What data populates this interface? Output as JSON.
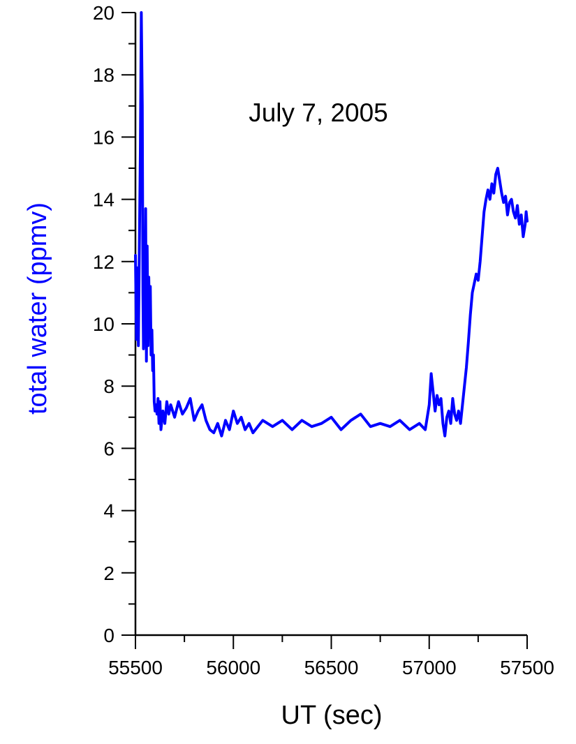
{
  "chart_data": {
    "type": "line",
    "annotation": "July 7, 2005",
    "xlabel": "UT (sec)",
    "ylabel": "total water (ppmv)",
    "xlim": [
      55500,
      57500
    ],
    "ylim": [
      0,
      20
    ],
    "x_ticks": [
      55500,
      56000,
      56500,
      57000,
      57500
    ],
    "y_ticks": [
      0,
      2,
      4,
      6,
      8,
      10,
      12,
      14,
      16,
      18,
      20
    ],
    "grid": false,
    "legend": "none",
    "colors": {
      "series": "#0000ff",
      "ylabel": "#0000ff",
      "axis": "#000000"
    },
    "series": [
      {
        "x": [
          55500,
          55505,
          55510,
          55515,
          55520,
          55525,
          55530,
          55535,
          55538,
          55541,
          55545,
          55548,
          55552,
          55556,
          55560,
          55564,
          55568,
          55572,
          55576,
          55580,
          55584,
          55588,
          55592,
          55596,
          55600,
          55605,
          55610,
          55615,
          55620,
          55625,
          55630,
          55640,
          55650,
          55660,
          55670,
          55680,
          55700,
          55720,
          55740,
          55760,
          55780,
          55800,
          55820,
          55840,
          55860,
          55880,
          55900,
          55920,
          55940,
          55960,
          55980,
          56000,
          56020,
          56040,
          56060,
          56080,
          56100,
          56150,
          56200,
          56250,
          56300,
          56350,
          56400,
          56450,
          56500,
          56550,
          56600,
          56650,
          56700,
          56750,
          56800,
          56850,
          56900,
          56950,
          56980,
          57000,
          57010,
          57020,
          57030,
          57040,
          57050,
          57060,
          57070,
          57080,
          57090,
          57100,
          57110,
          57120,
          57130,
          57140,
          57150,
          57160,
          57170,
          57180,
          57190,
          57200,
          57210,
          57220,
          57230,
          57240,
          57250,
          57260,
          57270,
          57280,
          57290,
          57300,
          57310,
          57320,
          57330,
          57340,
          57350,
          57360,
          57370,
          57380,
          57390,
          57400,
          57410,
          57420,
          57430,
          57440,
          57450,
          57460,
          57470,
          57480,
          57490,
          57495,
          57500
        ],
        "y": [
          12.2,
          9.5,
          11.8,
          9.3,
          12.5,
          15.5,
          20.0,
          17.0,
          11.0,
          9.2,
          12.5,
          9.5,
          13.7,
          8.8,
          12.5,
          9.3,
          11.5,
          10.0,
          11.2,
          9.0,
          9.8,
          8.5,
          9.0,
          7.5,
          7.2,
          7.4,
          7.1,
          7.6,
          6.8,
          7.5,
          6.6,
          7.2,
          6.8,
          7.5,
          7.1,
          7.4,
          7.0,
          7.5,
          7.1,
          7.3,
          7.6,
          6.9,
          7.2,
          7.4,
          6.9,
          6.6,
          6.5,
          6.8,
          6.4,
          6.9,
          6.6,
          7.2,
          6.8,
          7.0,
          6.6,
          6.8,
          6.5,
          6.9,
          6.7,
          6.9,
          6.6,
          6.9,
          6.7,
          6.8,
          7.0,
          6.6,
          6.9,
          7.1,
          6.7,
          6.8,
          6.7,
          6.9,
          6.6,
          6.8,
          6.6,
          7.4,
          8.4,
          7.8,
          7.2,
          7.7,
          7.4,
          7.6,
          6.8,
          6.4,
          7.0,
          7.2,
          6.8,
          7.6,
          7.1,
          6.9,
          7.2,
          6.8,
          7.4,
          8.0,
          8.6,
          9.4,
          10.3,
          11.0,
          11.3,
          11.6,
          11.4,
          12.0,
          12.8,
          13.6,
          14.0,
          14.3,
          14.0,
          14.5,
          14.2,
          14.8,
          15.0,
          14.6,
          14.2,
          13.9,
          14.1,
          13.5,
          13.9,
          14.0,
          13.6,
          13.4,
          13.8,
          13.2,
          13.5,
          12.8,
          13.2,
          13.6,
          13.3
        ]
      }
    ]
  }
}
